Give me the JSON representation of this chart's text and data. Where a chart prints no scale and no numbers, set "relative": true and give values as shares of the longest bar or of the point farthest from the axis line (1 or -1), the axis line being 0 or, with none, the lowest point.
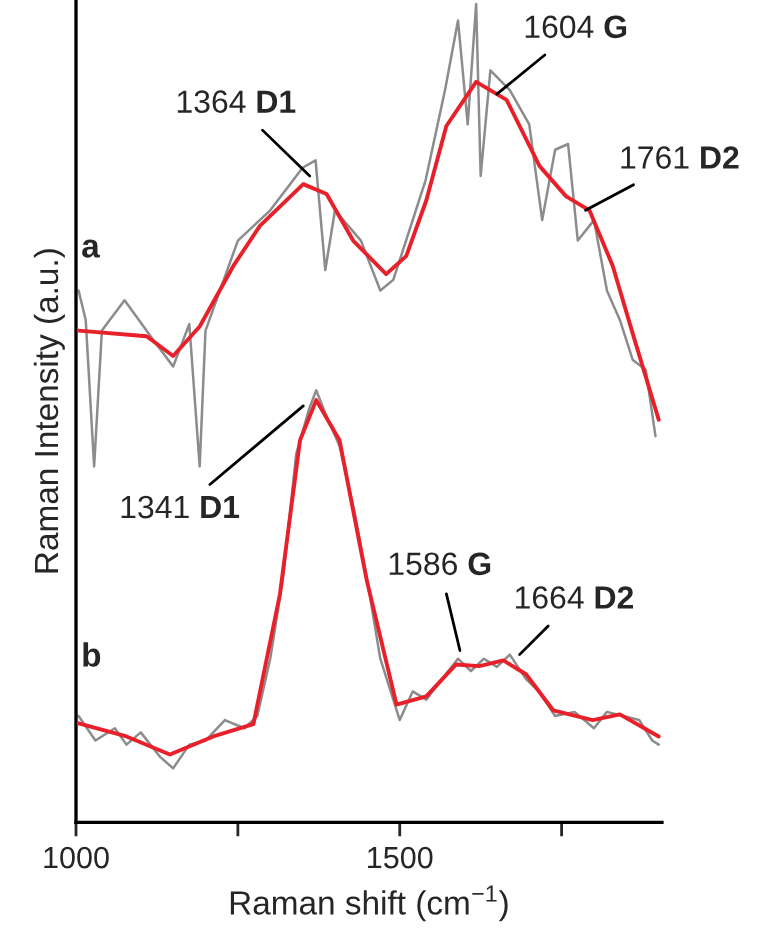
{
  "chart_data": {
    "type": "line",
    "relative": true,
    "xlabel": "Raman shift (cm$^{−1}$)",
    "ylabel": "Raman Intensity (a.u.)",
    "xlim": [
      1000,
      1905
    ],
    "xticks": [
      1000,
      {
        "value": 1250,
        "label": null
      },
      1500,
      {
        "value": 1750,
        "label": null
      }
    ],
    "series": [
      {
        "color": "#8c8c8c",
        "x": [
          1004,
          1015,
          1028,
          1040,
          1075,
          1120,
          1150,
          1175,
          1191,
          1200,
          1250,
          1300,
          1350,
          1370,
          1385,
          1400,
          1440,
          1470,
          1490,
          1500,
          1540,
          1570,
          1590,
          1605,
          1618,
          1625,
          1640,
          1670,
          1700,
          1720,
          1740,
          1760,
          1775,
          1800,
          1820,
          1840,
          1860,
          1880,
          1895
        ],
        "values": [
          0.65,
          0.614,
          0.435,
          0.601,
          0.638,
          0.589,
          0.557,
          0.609,
          0.435,
          0.601,
          0.711,
          0.748,
          0.8,
          0.809,
          0.675,
          0.748,
          0.711,
          0.65,
          0.663,
          0.687,
          0.785,
          0.895,
          0.98,
          0.853,
          1.0,
          0.79,
          0.919,
          0.895,
          0.853,
          0.736,
          0.822,
          0.829,
          0.711,
          0.736,
          0.65,
          0.614,
          0.565,
          0.553,
          0.472
        ]
      },
      {
        "name": "a",
        "color": "#e8202a",
        "x": [
          1004,
          1109,
          1150,
          1191,
          1243,
          1284,
          1351,
          1387,
          1428,
          1479,
          1510,
          1541,
          1572,
          1618,
          1665,
          1716,
          1757,
          1793,
          1829,
          1860,
          1900
        ],
        "values": [
          0.601,
          0.594,
          0.57,
          0.606,
          0.68,
          0.729,
          0.78,
          0.768,
          0.711,
          0.67,
          0.692,
          0.76,
          0.851,
          0.905,
          0.883,
          0.802,
          0.765,
          0.748,
          0.68,
          0.597,
          0.492
        ]
      },
      {
        "color": "#8c8c8c",
        "x": [
          1004,
          1030,
          1060,
          1078,
          1100,
          1130,
          1150,
          1175,
          1200,
          1230,
          1260,
          1280,
          1300,
          1320,
          1340,
          1360,
          1371,
          1385,
          1407,
          1430,
          1449,
          1470,
          1490,
          1500,
          1520,
          1541,
          1565,
          1590,
          1610,
          1630,
          1650,
          1670,
          1695,
          1715,
          1740,
          1770,
          1800,
          1820,
          1845,
          1870,
          1890,
          1900
        ],
        "values": [
          0.13,
          0.1,
          0.115,
          0.095,
          0.11,
          0.08,
          0.066,
          0.095,
          0.1,
          0.125,
          0.115,
          0.13,
          0.2,
          0.3,
          0.45,
          0.505,
          0.528,
          0.5,
          0.46,
          0.38,
          0.3,
          0.2,
          0.15,
          0.125,
          0.16,
          0.15,
          0.175,
          0.2,
          0.185,
          0.2,
          0.19,
          0.205,
          0.175,
          0.16,
          0.13,
          0.135,
          0.115,
          0.135,
          0.13,
          0.125,
          0.1,
          0.095
        ]
      },
      {
        "name": "b",
        "color": "#e8202a",
        "x": [
          1004,
          1078,
          1145,
          1212,
          1274,
          1315,
          1346,
          1371,
          1407,
          1449,
          1495,
          1541,
          1587,
          1623,
          1660,
          1695,
          1737,
          1798,
          1840,
          1900
        ],
        "values": [
          0.121,
          0.105,
          0.083,
          0.105,
          0.12,
          0.279,
          0.467,
          0.516,
          0.467,
          0.296,
          0.144,
          0.154,
          0.193,
          0.191,
          0.198,
          0.181,
          0.137,
          0.125,
          0.132,
          0.105
        ]
      }
    ],
    "annotations": [
      {
        "text": "1364 D1",
        "x": 1361,
        "y": 0.79
      },
      {
        "text": "1604 G",
        "x": 1650,
        "y": 0.89
      },
      {
        "text": "1761 D2",
        "x": 1787,
        "y": 0.748
      },
      {
        "text": "1341 D1",
        "x": 1351,
        "y": 0.509
      },
      {
        "text": "1586 G",
        "x": 1593,
        "y": 0.21
      },
      {
        "text": "1664 D2",
        "x": 1685,
        "y": 0.205
      }
    ]
  }
}
